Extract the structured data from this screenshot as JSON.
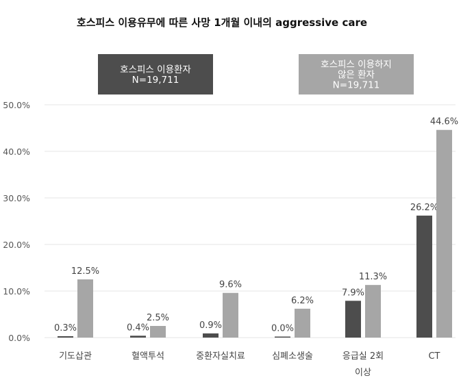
{
  "chart_data": {
    "type": "bar",
    "title": "호스피스 이용유무에 따른 사망 1개월 이내의 aggressive care",
    "categories": [
      [
        "기도삽관"
      ],
      [
        "혈액투석"
      ],
      [
        "중환자실치료"
      ],
      [
        "심폐소생술"
      ],
      [
        "응급실 2회",
        "이상"
      ],
      [
        "CT"
      ]
    ],
    "series": [
      {
        "name_lines": [
          "호스피스 이용환자",
          "N=19,711"
        ],
        "color": "#4d4d4d",
        "values": [
          0.3,
          0.4,
          0.9,
          0.0,
          7.9,
          26.2
        ],
        "labels": [
          "0.3%",
          "0.4%",
          "0.9%",
          "0.0%",
          "7.9%",
          "26.2%"
        ]
      },
      {
        "name_lines": [
          "호스피스 이용하지",
          "않은 환자",
          "N=19,711"
        ],
        "color": "#a6a6a6",
        "values": [
          12.5,
          2.5,
          9.6,
          6.2,
          11.3,
          44.6
        ],
        "labels": [
          "12.5%",
          "2.5%",
          "9.6%",
          "6.2%",
          "11.3%",
          "44.6%"
        ]
      }
    ],
    "ylim": [
      0,
      50
    ],
    "yticks": [
      "0.0%",
      "10.0%",
      "20.0%",
      "30.0%",
      "40.0%",
      "50.0%"
    ],
    "grid": true,
    "legend_position": "top"
  }
}
